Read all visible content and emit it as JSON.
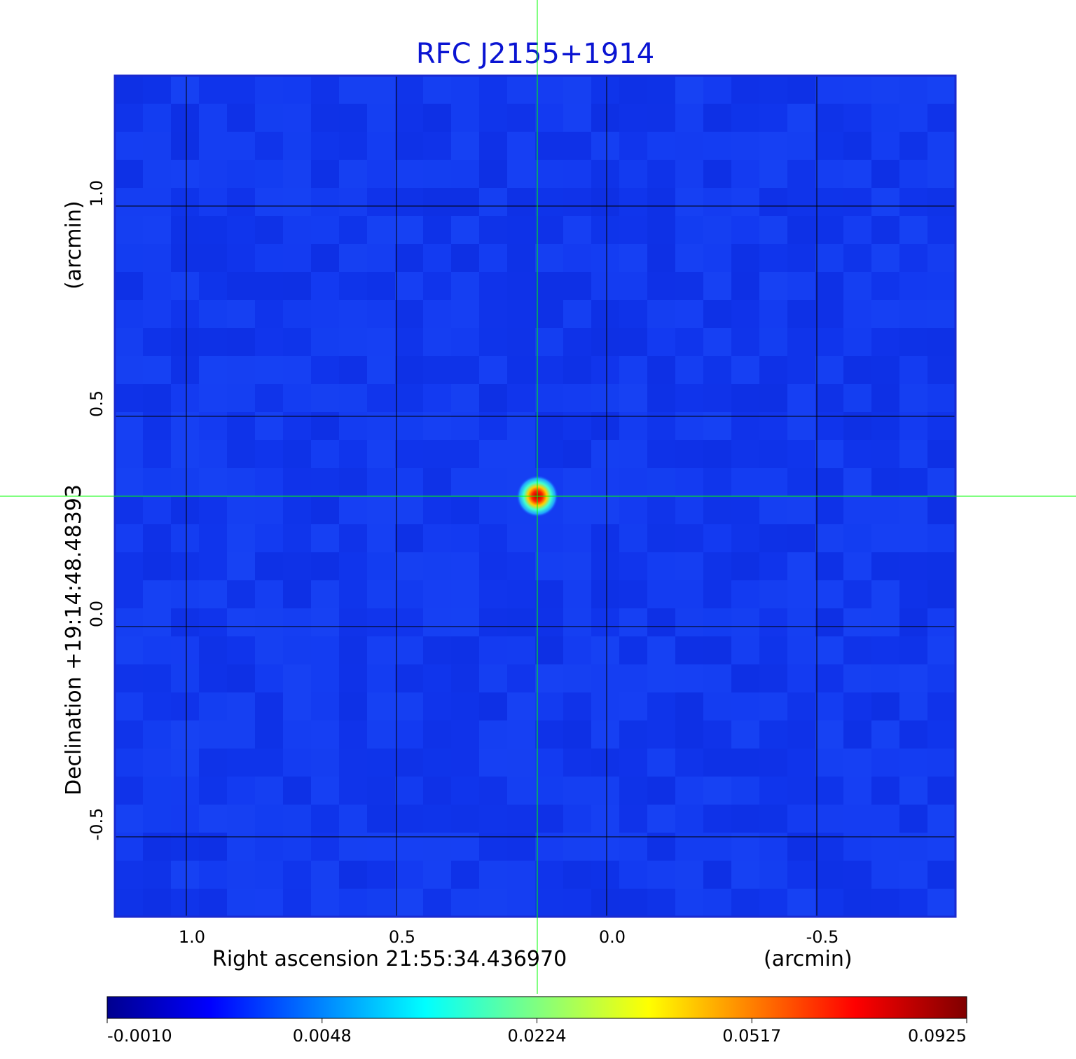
{
  "chart_data": {
    "type": "heatmap",
    "title": "RFC J2155+1914",
    "xlabel": "Right ascension  21:55:34.436970",
    "xunit": "(arcmin)",
    "ylabel": "Declination  +19:14:48.48393",
    "yunit": "(arcmin)",
    "xlim": [
      1.17,
      -0.83
    ],
    "ylim": [
      -0.69,
      1.31
    ],
    "x_ticks": [
      1.0,
      0.5,
      0.0,
      -0.5
    ],
    "x_tick_labels": [
      "1.0",
      "0.5",
      "0.0",
      "-0.5"
    ],
    "y_ticks": [
      1.0,
      0.5,
      0.0,
      -0.5
    ],
    "y_tick_labels": [
      "1.0",
      "0.5",
      "0.0",
      "-0.5"
    ],
    "grid": true,
    "source": {
      "x": 0.165,
      "y": 0.31,
      "peak": 0.0925
    },
    "crosshair": {
      "x": 0.165,
      "y": 0.31
    },
    "colorbar": {
      "position": "bottom",
      "colormap": "jet",
      "tick_labels": [
        "-0.0010",
        "0.0048",
        "0.0224",
        "0.0517",
        "0.0925"
      ]
    },
    "colors": {
      "title": "#0a14d2",
      "background_map": "#1238f0",
      "grid": "#000000",
      "crosshair": "#00ff00"
    }
  }
}
